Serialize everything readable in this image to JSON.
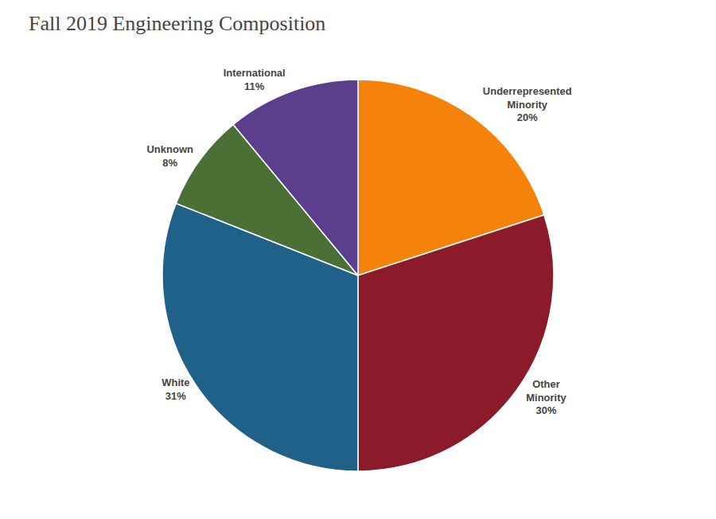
{
  "chart_data": {
    "type": "pie",
    "title": "Fall 2019 Engineering Composition",
    "categories": [
      "Underrepresented\nMinority\n20%",
      "Other\nMinority\n30%",
      "White\n31%",
      "Unknown\n8%",
      "International\n11%"
    ],
    "values": [
      20,
      30,
      31,
      8,
      11
    ],
    "colors": [
      "#F5820A",
      "#8B1A2A",
      "#1F6188",
      "#4A7036",
      "#5B3E8C"
    ]
  }
}
